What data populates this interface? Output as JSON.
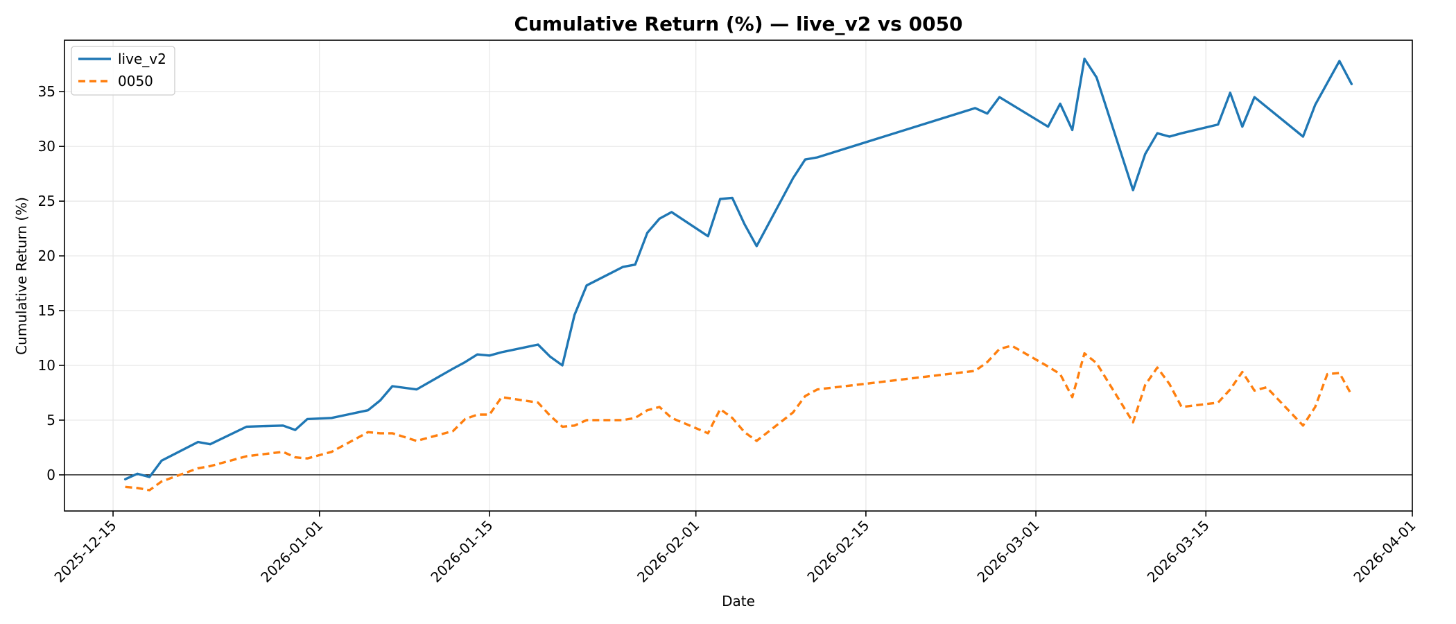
{
  "chart_data": {
    "type": "line",
    "title": "Cumulative Return (%) — live_v2 vs 0050",
    "xlabel": "Date",
    "ylabel": "Cumulative Return (%)",
    "xlim": [
      "2025-12-11",
      "2026-04-01"
    ],
    "ylim": [
      -3.3,
      39.7
    ],
    "x_ticks": [
      "2025-12-15",
      "2026-01-01",
      "2026-01-15",
      "2026-02-01",
      "2026-02-15",
      "2026-03-01",
      "2026-03-15",
      "2026-04-01"
    ],
    "y_ticks": [
      0,
      5,
      10,
      15,
      20,
      25,
      30,
      35
    ],
    "grid": true,
    "zero_line": true,
    "legend_position": "upper-left",
    "series": [
      {
        "name": "live_v2",
        "color": "#1f77b4",
        "style": "solid",
        "points": [
          [
            "2025-12-16",
            -0.4
          ],
          [
            "2025-12-17",
            0.1
          ],
          [
            "2025-12-18",
            -0.2
          ],
          [
            "2025-12-19",
            1.3
          ],
          [
            "2025-12-22",
            3.0
          ],
          [
            "2025-12-23",
            2.8
          ],
          [
            "2025-12-26",
            4.4
          ],
          [
            "2025-12-29",
            4.5
          ],
          [
            "2025-12-30",
            4.1
          ],
          [
            "2025-12-31",
            5.1
          ],
          [
            "2026-01-02",
            5.2
          ],
          [
            "2026-01-05",
            5.9
          ],
          [
            "2026-01-06",
            6.8
          ],
          [
            "2026-01-07",
            8.1
          ],
          [
            "2026-01-09",
            7.8
          ],
          [
            "2026-01-12",
            9.7
          ],
          [
            "2026-01-13",
            10.3
          ],
          [
            "2026-01-14",
            11.0
          ],
          [
            "2026-01-15",
            10.9
          ],
          [
            "2026-01-16",
            11.2
          ],
          [
            "2026-01-19",
            11.9
          ],
          [
            "2026-01-20",
            10.8
          ],
          [
            "2026-01-21",
            10.0
          ],
          [
            "2026-01-22",
            14.6
          ],
          [
            "2026-01-23",
            17.3
          ],
          [
            "2026-01-26",
            19.0
          ],
          [
            "2026-01-27",
            19.2
          ],
          [
            "2026-01-28",
            22.1
          ],
          [
            "2026-01-29",
            23.4
          ],
          [
            "2026-01-30",
            24.0
          ],
          [
            "2026-02-02",
            21.8
          ],
          [
            "2026-02-03",
            25.2
          ],
          [
            "2026-02-04",
            25.3
          ],
          [
            "2026-02-05",
            22.9
          ],
          [
            "2026-02-06",
            20.9
          ],
          [
            "2026-02-09",
            27.1
          ],
          [
            "2026-02-10",
            28.8
          ],
          [
            "2026-02-11",
            29.0
          ],
          [
            "2026-02-24",
            33.5
          ],
          [
            "2026-02-25",
            33.0
          ],
          [
            "2026-02-26",
            34.5
          ],
          [
            "2026-03-02",
            31.8
          ],
          [
            "2026-03-03",
            33.9
          ],
          [
            "2026-03-04",
            31.5
          ],
          [
            "2026-03-05",
            38.0
          ],
          [
            "2026-03-06",
            36.3
          ],
          [
            "2026-03-09",
            26.0
          ],
          [
            "2026-03-10",
            29.3
          ],
          [
            "2026-03-11",
            31.2
          ],
          [
            "2026-03-12",
            30.9
          ],
          [
            "2026-03-13",
            31.2
          ],
          [
            "2026-03-16",
            32.0
          ],
          [
            "2026-03-17",
            34.9
          ],
          [
            "2026-03-18",
            31.8
          ],
          [
            "2026-03-19",
            34.5
          ],
          [
            "2026-03-23",
            30.9
          ],
          [
            "2026-03-24",
            33.8
          ],
          [
            "2026-03-25",
            35.8
          ],
          [
            "2026-03-26",
            37.8
          ],
          [
            "2026-03-27",
            35.7
          ]
        ]
      },
      {
        "name": "0050",
        "color": "#ff7f0e",
        "style": "dashed",
        "points": [
          [
            "2025-12-16",
            -1.1
          ],
          [
            "2025-12-17",
            -1.2
          ],
          [
            "2025-12-18",
            -1.4
          ],
          [
            "2025-12-19",
            -0.6
          ],
          [
            "2025-12-22",
            0.6
          ],
          [
            "2025-12-23",
            0.8
          ],
          [
            "2025-12-26",
            1.7
          ],
          [
            "2025-12-29",
            2.1
          ],
          [
            "2025-12-30",
            1.6
          ],
          [
            "2025-12-31",
            1.5
          ],
          [
            "2026-01-02",
            2.1
          ],
          [
            "2026-01-05",
            3.9
          ],
          [
            "2026-01-06",
            3.8
          ],
          [
            "2026-01-07",
            3.8
          ],
          [
            "2026-01-09",
            3.1
          ],
          [
            "2026-01-12",
            4.0
          ],
          [
            "2026-01-13",
            5.1
          ],
          [
            "2026-01-14",
            5.5
          ],
          [
            "2026-01-15",
            5.5
          ],
          [
            "2026-01-16",
            7.1
          ],
          [
            "2026-01-19",
            6.6
          ],
          [
            "2026-01-20",
            5.4
          ],
          [
            "2026-01-21",
            4.4
          ],
          [
            "2026-01-22",
            4.5
          ],
          [
            "2026-01-23",
            5.0
          ],
          [
            "2026-01-26",
            5.0
          ],
          [
            "2026-01-27",
            5.2
          ],
          [
            "2026-01-28",
            5.9
          ],
          [
            "2026-01-29",
            6.2
          ],
          [
            "2026-01-30",
            5.2
          ],
          [
            "2026-02-02",
            3.8
          ],
          [
            "2026-02-03",
            6.0
          ],
          [
            "2026-02-04",
            5.2
          ],
          [
            "2026-02-05",
            3.9
          ],
          [
            "2026-02-06",
            3.1
          ],
          [
            "2026-02-09",
            5.7
          ],
          [
            "2026-02-10",
            7.2
          ],
          [
            "2026-02-11",
            7.8
          ],
          [
            "2026-02-24",
            9.5
          ],
          [
            "2026-02-25",
            10.3
          ],
          [
            "2026-02-26",
            11.5
          ],
          [
            "2026-02-27",
            11.8
          ],
          [
            "2026-03-02",
            9.9
          ],
          [
            "2026-03-03",
            9.2
          ],
          [
            "2026-03-04",
            7.1
          ],
          [
            "2026-03-05",
            11.1
          ],
          [
            "2026-03-06",
            10.2
          ],
          [
            "2026-03-09",
            4.8
          ],
          [
            "2026-03-10",
            8.2
          ],
          [
            "2026-03-11",
            9.8
          ],
          [
            "2026-03-12",
            8.3
          ],
          [
            "2026-03-13",
            6.2
          ],
          [
            "2026-03-16",
            6.6
          ],
          [
            "2026-03-17",
            7.8
          ],
          [
            "2026-03-18",
            9.4
          ],
          [
            "2026-03-19",
            7.7
          ],
          [
            "2026-03-20",
            8.0
          ],
          [
            "2026-03-23",
            4.5
          ],
          [
            "2026-03-24",
            6.2
          ],
          [
            "2026-03-25",
            9.2
          ],
          [
            "2026-03-26",
            9.3
          ],
          [
            "2026-03-27",
            7.3
          ]
        ]
      }
    ]
  }
}
